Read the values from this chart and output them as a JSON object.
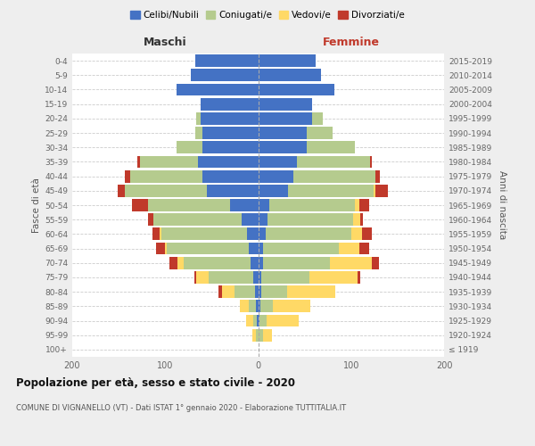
{
  "age_groups": [
    "100+",
    "95-99",
    "90-94",
    "85-89",
    "80-84",
    "75-79",
    "70-74",
    "65-69",
    "60-64",
    "55-59",
    "50-54",
    "45-49",
    "40-44",
    "35-39",
    "30-34",
    "25-29",
    "20-24",
    "15-19",
    "10-14",
    "5-9",
    "0-4"
  ],
  "birth_years": [
    "≤ 1919",
    "1920-1924",
    "1925-1929",
    "1930-1934",
    "1935-1939",
    "1940-1944",
    "1945-1949",
    "1950-1954",
    "1955-1959",
    "1960-1964",
    "1965-1969",
    "1970-1974",
    "1975-1979",
    "1980-1984",
    "1985-1989",
    "1990-1994",
    "1995-1999",
    "2000-2004",
    "2005-2009",
    "2010-2014",
    "2015-2019"
  ],
  "colors": {
    "celibe": "#4472c4",
    "coniugato": "#b5cb8e",
    "vedovo": "#ffd966",
    "divorziato": "#c0392b"
  },
  "maschi": {
    "celibe": [
      0,
      0,
      1,
      2,
      3,
      5,
      8,
      10,
      12,
      18,
      30,
      55,
      60,
      65,
      60,
      60,
      62,
      62,
      88,
      72,
      68
    ],
    "coniugato": [
      0,
      2,
      4,
      8,
      22,
      48,
      72,
      88,
      92,
      95,
      88,
      88,
      78,
      62,
      28,
      8,
      5,
      0,
      0,
      0,
      0
    ],
    "vedovo": [
      0,
      4,
      8,
      10,
      14,
      14,
      7,
      2,
      2,
      0,
      0,
      0,
      0,
      0,
      0,
      0,
      0,
      0,
      0,
      0,
      0
    ],
    "divorziato": [
      0,
      0,
      0,
      0,
      4,
      2,
      8,
      10,
      8,
      5,
      18,
      8,
      5,
      3,
      0,
      0,
      0,
      0,
      0,
      0,
      0
    ]
  },
  "femmine": {
    "nubile": [
      0,
      0,
      1,
      2,
      3,
      3,
      5,
      5,
      8,
      10,
      12,
      32,
      38,
      42,
      52,
      52,
      58,
      58,
      82,
      68,
      62
    ],
    "coniugata": [
      0,
      5,
      8,
      14,
      28,
      52,
      72,
      82,
      92,
      92,
      92,
      92,
      88,
      78,
      52,
      28,
      12,
      0,
      0,
      0,
      0
    ],
    "vedova": [
      0,
      10,
      35,
      40,
      52,
      52,
      45,
      22,
      12,
      8,
      5,
      2,
      0,
      0,
      0,
      0,
      0,
      0,
      0,
      0,
      0
    ],
    "divorziata": [
      0,
      0,
      0,
      0,
      0,
      3,
      8,
      10,
      10,
      3,
      10,
      14,
      5,
      2,
      0,
      0,
      0,
      0,
      0,
      0,
      0
    ]
  },
  "xlim": 200,
  "title": "Popolazione per età, sesso e stato civile - 2020",
  "subtitle": "COMUNE DI VIGNANELLO (VT) - Dati ISTAT 1° gennaio 2020 - Elaborazione TUTTITALIA.IT",
  "ylabel_left": "Fasce di età",
  "ylabel_right": "Anni di nascita",
  "header_maschi": "Maschi",
  "header_femmine": "Femmine",
  "bg_color": "#eeeeee",
  "plot_bg_color": "#ffffff",
  "legend_labels": [
    "Celibi/Nubili",
    "Coniugati/e",
    "Vedovi/e",
    "Divorziati/e"
  ]
}
